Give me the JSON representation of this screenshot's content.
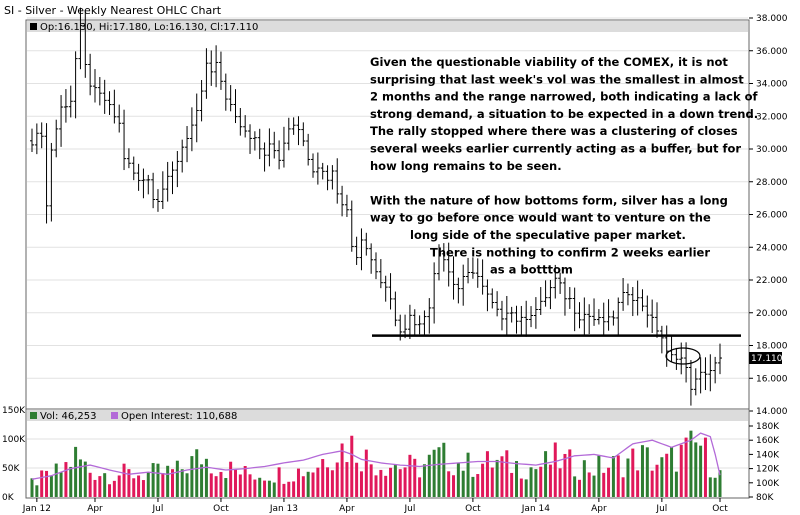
{
  "chart_data": {
    "type": "ohlc",
    "title": "SI - Silver - Weekly Nearest OHLC Chart",
    "last_bar_legend": "Op:16.130, Hi:17.180, Lo:16.130, Cl:17.110",
    "last_price_tag": "17.110",
    "price_axis": {
      "ylim": [
        14,
        38
      ],
      "ticks": [
        "14.000",
        "16.000",
        "18.000",
        "20.000",
        "22.000",
        "24.000",
        "26.000",
        "28.000",
        "30.000",
        "32.000",
        "34.000",
        "36.000",
        "38.000"
      ]
    },
    "x_labels": [
      "Jan 12",
      "Apr",
      "Jul",
      "Oct",
      "Jan 13",
      "Apr",
      "Jul",
      "Oct",
      "Jan 14",
      "Apr",
      "Jul",
      "Oct"
    ],
    "support_line_price": 18.6,
    "price_path": [
      [
        0,
        30.5
      ],
      [
        2,
        31.0
      ],
      [
        3,
        26.5
      ],
      [
        4,
        30.0
      ],
      [
        6,
        32.5
      ],
      [
        8,
        33.0
      ],
      [
        9,
        35.5
      ],
      [
        10,
        37.3
      ],
      [
        11,
        35.0
      ],
      [
        12,
        34.0
      ],
      [
        13,
        33.5
      ],
      [
        15,
        33.0
      ],
      [
        17,
        32.0
      ],
      [
        18,
        31.5
      ],
      [
        19,
        29.5
      ],
      [
        21,
        28.5
      ],
      [
        22,
        28.0
      ],
      [
        24,
        28.3
      ],
      [
        25,
        27.0
      ],
      [
        26,
        26.8
      ],
      [
        27,
        27.8
      ],
      [
        28,
        28.5
      ],
      [
        30,
        29.0
      ],
      [
        31,
        30.0
      ],
      [
        33,
        31.5
      ],
      [
        35,
        33.5
      ],
      [
        36,
        35.0
      ],
      [
        37,
        34.5
      ],
      [
        38,
        35.3
      ],
      [
        39,
        34.0
      ],
      [
        40,
        33.0
      ],
      [
        41,
        32.5
      ],
      [
        42,
        32.0
      ],
      [
        43,
        31.5
      ],
      [
        44,
        31.0
      ],
      [
        45,
        30.5
      ],
      [
        46,
        30.8
      ],
      [
        47,
        30.0
      ],
      [
        48,
        29.8
      ],
      [
        49,
        30.5
      ],
      [
        50,
        30.0
      ],
      [
        51,
        29.5
      ],
      [
        52,
        30.2
      ],
      [
        53,
        31.2
      ],
      [
        54,
        31.5
      ],
      [
        55,
        31.0
      ],
      [
        56,
        30.5
      ],
      [
        57,
        29.5
      ],
      [
        58,
        28.7
      ],
      [
        59,
        29.0
      ],
      [
        60,
        28.8
      ],
      [
        61,
        28.3
      ],
      [
        62,
        28.5
      ],
      [
        63,
        27.5
      ],
      [
        64,
        26.8
      ],
      [
        65,
        26.5
      ],
      [
        66,
        24.0
      ],
      [
        67,
        23.5
      ],
      [
        68,
        24.5
      ],
      [
        69,
        24.0
      ],
      [
        70,
        23.3
      ],
      [
        71,
        22.5
      ],
      [
        72,
        22.0
      ],
      [
        73,
        21.8
      ],
      [
        74,
        21.0
      ],
      [
        75,
        19.5
      ],
      [
        76,
        19.0
      ],
      [
        77,
        18.9
      ],
      [
        78,
        20.0
      ],
      [
        79,
        19.5
      ],
      [
        80,
        19.2
      ],
      [
        81,
        19.8
      ],
      [
        82,
        20.5
      ],
      [
        83,
        22.5
      ],
      [
        84,
        23.8
      ],
      [
        85,
        23.3
      ],
      [
        86,
        22.5
      ],
      [
        87,
        21.8
      ],
      [
        88,
        21.5
      ],
      [
        89,
        22.0
      ],
      [
        90,
        22.3
      ],
      [
        91,
        22.6
      ],
      [
        92,
        22.2
      ],
      [
        93,
        21.5
      ],
      [
        94,
        21.0
      ],
      [
        95,
        20.5
      ],
      [
        96,
        20.0
      ],
      [
        97,
        19.8
      ],
      [
        98,
        20.2
      ],
      [
        99,
        20.0
      ],
      [
        100,
        19.6
      ],
      [
        101,
        19.5
      ],
      [
        102,
        19.8
      ],
      [
        103,
        20.0
      ],
      [
        104,
        20.2
      ],
      [
        105,
        20.5
      ],
      [
        106,
        21.0
      ],
      [
        107,
        21.5
      ],
      [
        108,
        22.0
      ],
      [
        109,
        21.6
      ],
      [
        110,
        21.0
      ],
      [
        111,
        20.8
      ],
      [
        112,
        20.2
      ],
      [
        113,
        19.8
      ],
      [
        114,
        19.9
      ],
      [
        115,
        19.8
      ],
      [
        116,
        19.6
      ],
      [
        117,
        19.5
      ],
      [
        118,
        19.5
      ],
      [
        119,
        19.5
      ],
      [
        120,
        19.8
      ],
      [
        121,
        20.5
      ],
      [
        122,
        21.0
      ],
      [
        123,
        21.3
      ],
      [
        124,
        21.0
      ],
      [
        125,
        20.8
      ],
      [
        126,
        20.5
      ],
      [
        127,
        20.0
      ],
      [
        128,
        19.5
      ],
      [
        129,
        19.0
      ],
      [
        130,
        18.5
      ],
      [
        131,
        17.5
      ],
      [
        132,
        17.3
      ],
      [
        133,
        17.4
      ],
      [
        134,
        17.2
      ],
      [
        135,
        16.5
      ],
      [
        136,
        15.5
      ],
      [
        137,
        15.8
      ],
      [
        138,
        16.2
      ],
      [
        139,
        16.4
      ],
      [
        140,
        16.5
      ],
      [
        141,
        16.8
      ],
      [
        142,
        17.1
      ]
    ],
    "volume_panel": {
      "vol_legend": "Vol: 46,253",
      "oi_legend": "Open Interest: 110,688",
      "left_axis_ticks": [
        "0K",
        "50K",
        "100K",
        "150K"
      ],
      "right_axis_ticks": [
        "80K",
        "100K",
        "120K",
        "140K",
        "160K",
        "180K"
      ],
      "left_ylim": [
        0,
        150000
      ],
      "right_ylim": [
        80000,
        180000
      ],
      "volume_path": [
        [
          0,
          25000
        ],
        [
          6,
          45000
        ],
        [
          9,
          70000
        ],
        [
          12,
          45000
        ],
        [
          16,
          40000
        ],
        [
          24,
          40000
        ],
        [
          30,
          45000
        ],
        [
          35,
          70000
        ],
        [
          38,
          55000
        ],
        [
          44,
          40000
        ],
        [
          52,
          40000
        ],
        [
          58,
          50000
        ],
        [
          62,
          80000
        ],
        [
          66,
          90000
        ],
        [
          70,
          60000
        ],
        [
          76,
          55000
        ],
        [
          80,
          50000
        ],
        [
          84,
          70000
        ],
        [
          90,
          55000
        ],
        [
          96,
          60000
        ],
        [
          100,
          55000
        ],
        [
          104,
          50000
        ],
        [
          108,
          65000
        ],
        [
          112,
          55000
        ],
        [
          116,
          50000
        ],
        [
          120,
          55000
        ],
        [
          126,
          70000
        ],
        [
          130,
          55000
        ],
        [
          134,
          75000
        ],
        [
          138,
          90000
        ],
        [
          140,
          60000
        ],
        [
          142,
          46253
        ]
      ],
      "oi_path": [
        [
          0,
          105000
        ],
        [
          4,
          110000
        ],
        [
          8,
          120000
        ],
        [
          12,
          125000
        ],
        [
          16,
          118000
        ],
        [
          20,
          112000
        ],
        [
          24,
          115000
        ],
        [
          28,
          112000
        ],
        [
          32,
          118000
        ],
        [
          36,
          122000
        ],
        [
          40,
          118000
        ],
        [
          44,
          120000
        ],
        [
          48,
          123000
        ],
        [
          52,
          128000
        ],
        [
          56,
          132000
        ],
        [
          60,
          140000
        ],
        [
          64,
          145000
        ],
        [
          66,
          140000
        ],
        [
          68,
          133000
        ],
        [
          72,
          128000
        ],
        [
          76,
          125000
        ],
        [
          80,
          123000
        ],
        [
          84,
          126000
        ],
        [
          88,
          128000
        ],
        [
          92,
          130000
        ],
        [
          96,
          130000
        ],
        [
          100,
          127000
        ],
        [
          104,
          125000
        ],
        [
          108,
          130000
        ],
        [
          112,
          138000
        ],
        [
          116,
          140000
        ],
        [
          120,
          135000
        ],
        [
          124,
          155000
        ],
        [
          128,
          160000
        ],
        [
          132,
          150000
        ],
        [
          136,
          160000
        ],
        [
          138,
          170000
        ],
        [
          140,
          165000
        ],
        [
          141,
          140000
        ],
        [
          142,
          110688
        ]
      ]
    }
  },
  "annotation_lines": [
    "Given the questionable viability of the COMEX, it is not",
    "surprising that last week's vol was the smallest in almost",
    "2 months and the range narrowed, both indicating a lack of",
    "strong demand, a situation to be expected in a down trend.",
    "The rally stopped where there was a clustering of closes",
    "several weeks earlier currently acting as a buffer, but for",
    "how long remains to be seen.",
    "",
    "With the nature of how bottoms form, silver has a long",
    "way to go before once would want to venture on the",
    "long side of the speculative paper market.",
    "There is nothing to confirm 2 weeks earlier",
    "as a botttom"
  ],
  "colors": {
    "panel_bg": "#ffffff",
    "header_bg": "#dcdcdc",
    "price_bar": "#000000",
    "vol_up": "#2e7d32",
    "vol_down": "#e0185a",
    "open_interest": "#b36ad8",
    "support_line": "#000000",
    "grid": "#e2e2e2"
  }
}
